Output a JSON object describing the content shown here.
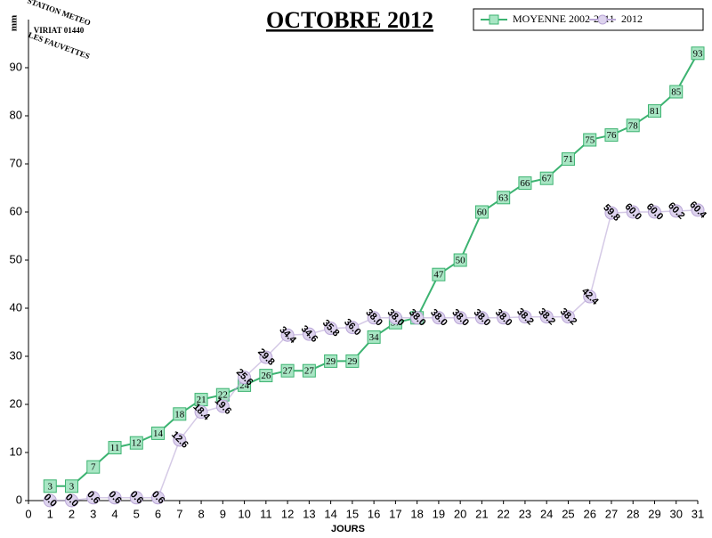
{
  "logo": {
    "line1": "STATION METEO",
    "line2": "VIRIAT 01440",
    "line3": "LES FAUVETTES"
  },
  "chart_data": {
    "type": "line",
    "title": "OCTOBRE 2012",
    "x_label": "JOURS",
    "y_label": "mm",
    "x": [
      1,
      2,
      3,
      4,
      5,
      6,
      7,
      8,
      9,
      10,
      11,
      12,
      13,
      14,
      15,
      16,
      17,
      18,
      19,
      20,
      21,
      22,
      23,
      24,
      25,
      26,
      27,
      28,
      29,
      30,
      31
    ],
    "xlim": [
      0,
      31
    ],
    "xticks": [
      0,
      1,
      2,
      3,
      4,
      5,
      6,
      7,
      8,
      9,
      10,
      11,
      12,
      13,
      14,
      15,
      16,
      17,
      18,
      19,
      20,
      21,
      22,
      23,
      24,
      25,
      26,
      27,
      28,
      29,
      30,
      31
    ],
    "ylim": [
      0,
      100
    ],
    "yticks": [
      0,
      10,
      20,
      30,
      40,
      50,
      60,
      70,
      80,
      90
    ],
    "series": [
      {
        "name": "MOYENNE 2002-2011",
        "color": "#3cb371",
        "marker": "square",
        "values": [
          3,
          3,
          7,
          11,
          12,
          14,
          18,
          21,
          22,
          24,
          26,
          27,
          27,
          29,
          29,
          34,
          37,
          38,
          47,
          50,
          60,
          63,
          66,
          67,
          71,
          75,
          76,
          78,
          81,
          85,
          93
        ]
      },
      {
        "name": "2012",
        "color": "#b9a6d6",
        "marker": "circle",
        "values": [
          0,
          0,
          0.6,
          0.6,
          0.6,
          0.6,
          12.6,
          18.4,
          19.6,
          25.6,
          29.8,
          34.4,
          34.6,
          35.8,
          36,
          38,
          38,
          38,
          38,
          38,
          38,
          38,
          38.2,
          38.2,
          38.2,
          42.4,
          59.8,
          60,
          60,
          60.2,
          60.4
        ],
        "value_labels": [
          "0.0",
          "0.0",
          "0.6",
          "0.6",
          "0.6",
          "0.6",
          "12.6",
          "18.4",
          "19.6",
          "25.6",
          "29.8",
          "34.4",
          "34.6",
          "35.8",
          "36.0",
          "38.0",
          "38.0",
          "38.0",
          "38.0",
          "38.0",
          "38.0",
          "38.0",
          "38.2",
          "38.2",
          "38.2",
          "42.4",
          "59.8",
          "60.0",
          "60.0",
          "60.2",
          "60.4"
        ]
      }
    ]
  }
}
